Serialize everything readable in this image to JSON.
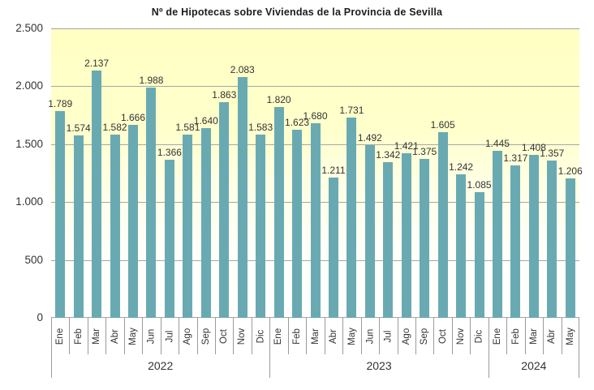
{
  "chart_data": {
    "type": "bar",
    "title": "Nº de Hipotecas sobre Viviendas de la Provincia de Sevilla",
    "xlabel": "",
    "ylabel": "",
    "ylim": [
      0,
      2500
    ],
    "ytick_interval": 500,
    "ytick_labels": [
      "0",
      "500",
      "1.000",
      "1.500",
      "2.000",
      "2.500"
    ],
    "grid": true,
    "legend": false,
    "bar_color": "#69aab2",
    "gridline_color": "#a6a6a6",
    "axis_line_color": "#9b9b9b",
    "plot_background_top": "#ffffc3",
    "plot_background_bottom": "#ffffff",
    "groups": [
      {
        "year": "2022",
        "months": [
          "Ene",
          "Feb",
          "Mar",
          "Abr",
          "May",
          "Jun",
          "Jul",
          "Ago",
          "Sep",
          "Oct",
          "Nov",
          "Dic"
        ],
        "values": [
          1789,
          1574,
          2137,
          1582,
          1666,
          1988,
          1366,
          1581,
          1640,
          1863,
          2083,
          1583
        ],
        "value_labels": [
          "1.789",
          "1.574",
          "2.137",
          "1.582",
          "1.666",
          "1.988",
          "1.366",
          "1.581",
          "1.640",
          "1.863",
          "2.083",
          "1.583"
        ]
      },
      {
        "year": "2023",
        "months": [
          "Ene",
          "Feb",
          "Mar",
          "Abr",
          "May",
          "Jun",
          "Jul",
          "Ago",
          "Sep",
          "Oct",
          "Nov",
          "Dic"
        ],
        "values": [
          1820,
          1623,
          1680,
          1211,
          1731,
          1492,
          1342,
          1421,
          1375,
          1605,
          1242,
          1085
        ],
        "value_labels": [
          "1.820",
          "1.623",
          "1.680",
          "1.211",
          "1.731",
          "1.492",
          "1.342",
          "1.421",
          "1.375",
          "1.605",
          "1.242",
          "1.085"
        ]
      },
      {
        "year": "2024",
        "months": [
          "Ene",
          "Feb",
          "Mar",
          "Abr",
          "May"
        ],
        "values": [
          1445,
          1317,
          1408,
          1357,
          1206
        ],
        "value_labels": [
          "1.445",
          "1.317",
          "1.408",
          "1.357",
          "1.206"
        ]
      }
    ]
  }
}
